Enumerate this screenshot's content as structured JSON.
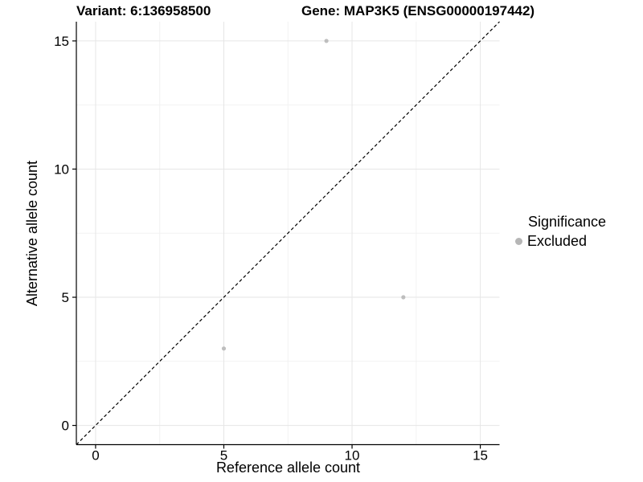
{
  "header": {
    "variant_title": "Variant: 6:136958500",
    "gene_title": "Gene: MAP3K5 (ENSG00000197442)"
  },
  "legend": {
    "title": "Significance",
    "items": [
      {
        "label": "Excluded",
        "color": "#b6b6b6"
      }
    ]
  },
  "colors": {
    "point": "#bebebe",
    "grid_major": "#e6e6e6",
    "grid_minor": "#f2f2f2",
    "axis": "#000000",
    "tick_text": "#000000",
    "reference_line": "#000000"
  },
  "chart_data": {
    "type": "scatter",
    "title": "Variant: 6:136958500 — Gene: MAP3K5 (ENSG00000197442)",
    "xlabel": "Reference allele count",
    "ylabel": "Alternative allele count",
    "xlim": [
      -0.75,
      15.75
    ],
    "ylim": [
      -0.75,
      15.75
    ],
    "x_ticks": [
      0,
      5,
      10,
      15
    ],
    "y_ticks": [
      0,
      5,
      10,
      15
    ],
    "x_minor_ticks": [
      2.5,
      7.5,
      12.5
    ],
    "y_minor_ticks": [
      2.5,
      7.5,
      12.5
    ],
    "grid": true,
    "legend_position": "right",
    "series": [
      {
        "name": "Excluded",
        "color": "#bebebe",
        "marker": "circle",
        "points": [
          {
            "x": 9,
            "y": 15
          },
          {
            "x": 12,
            "y": 5
          },
          {
            "x": 5,
            "y": 3
          }
        ]
      }
    ],
    "reference_line": {
      "kind": "identity",
      "equation": "y = x",
      "style": "dashed",
      "color": "#000000"
    }
  }
}
